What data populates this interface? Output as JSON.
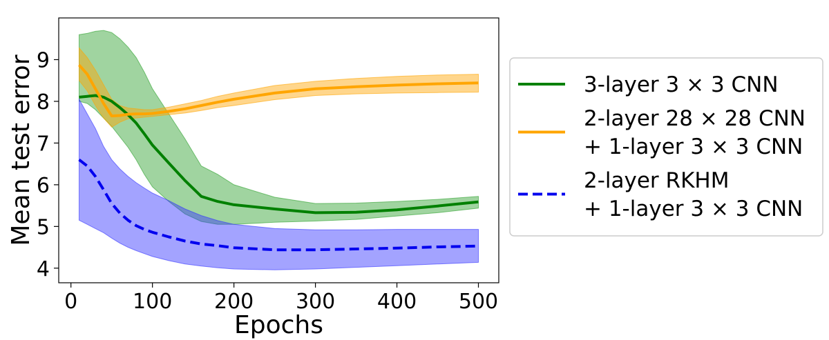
{
  "chart_data": {
    "type": "line",
    "title": "",
    "xlabel": "Epochs",
    "ylabel": "Mean test error",
    "xlim": [
      -15,
      525
    ],
    "ylim": [
      3.65,
      10.0
    ],
    "xticks": [
      0,
      100,
      200,
      300,
      400,
      500
    ],
    "yticks": [
      4,
      5,
      6,
      7,
      8,
      9
    ],
    "grid": false,
    "legend_position": "outside-right",
    "series": [
      {
        "name": "3-layer 3 × 3 CNN",
        "legend_lines": [
          "3-layer 3 × 3 CNN"
        ],
        "color": "#008000",
        "band_color": "#2ca02c",
        "line_style": "solid",
        "x": [
          10,
          20,
          30,
          40,
          50,
          60,
          70,
          80,
          90,
          100,
          120,
          140,
          160,
          180,
          200,
          250,
          300,
          350,
          400,
          450,
          500
        ],
        "y": [
          8.1,
          8.12,
          8.14,
          8.1,
          8.0,
          7.85,
          7.68,
          7.48,
          7.22,
          6.95,
          6.52,
          6.1,
          5.72,
          5.6,
          5.52,
          5.42,
          5.33,
          5.34,
          5.4,
          5.49,
          5.59
        ],
        "upper": [
          9.6,
          9.63,
          9.68,
          9.7,
          9.65,
          9.5,
          9.3,
          9.05,
          8.7,
          8.3,
          7.7,
          7.1,
          6.45,
          6.25,
          6.0,
          5.7,
          5.55,
          5.56,
          5.6,
          5.65,
          5.72
        ],
        "lower": [
          8.0,
          7.95,
          7.8,
          7.6,
          7.4,
          7.15,
          6.9,
          6.6,
          6.25,
          5.95,
          5.6,
          5.3,
          5.12,
          5.05,
          5.05,
          5.1,
          5.13,
          5.17,
          5.25,
          5.33,
          5.44
        ]
      },
      {
        "name": "2-layer 28 × 28 CNN + 1-layer 3 × 3 CNN",
        "legend_lines": [
          "2-layer 28 × 28 CNN",
          "+ 1-layer 3 × 3 CNN"
        ],
        "color": "#ffa500",
        "band_color": "#ffa500",
        "line_style": "solid",
        "x": [
          10,
          20,
          30,
          40,
          50,
          60,
          70,
          80,
          90,
          100,
          120,
          140,
          160,
          180,
          200,
          250,
          300,
          350,
          400,
          450,
          500
        ],
        "y": [
          8.87,
          8.65,
          8.3,
          7.95,
          7.65,
          7.66,
          7.69,
          7.7,
          7.7,
          7.71,
          7.76,
          7.82,
          7.9,
          7.98,
          8.05,
          8.2,
          8.3,
          8.35,
          8.39,
          8.42,
          8.44
        ],
        "upper": [
          9.28,
          9.05,
          8.75,
          8.4,
          8.05,
          7.9,
          7.84,
          7.82,
          7.8,
          7.8,
          7.86,
          7.94,
          8.02,
          8.12,
          8.2,
          8.38,
          8.48,
          8.55,
          8.6,
          8.63,
          8.65
        ],
        "lower": [
          8.5,
          8.25,
          7.9,
          7.6,
          7.38,
          7.5,
          7.58,
          7.6,
          7.62,
          7.64,
          7.68,
          7.72,
          7.78,
          7.85,
          7.9,
          8.04,
          8.14,
          8.18,
          8.2,
          8.21,
          8.22
        ]
      },
      {
        "name": "2-layer RKHM + 1-layer 3 × 3 CNN",
        "legend_lines": [
          "2-layer RKHM",
          "+ 1-layer 3 × 3 CNN"
        ],
        "color": "#0000ee",
        "band_color": "#3333ff",
        "line_style": "dashed",
        "x": [
          10,
          20,
          30,
          40,
          50,
          60,
          70,
          80,
          90,
          100,
          120,
          140,
          160,
          180,
          200,
          250,
          300,
          350,
          400,
          450,
          500
        ],
        "y": [
          6.6,
          6.45,
          6.2,
          5.88,
          5.55,
          5.32,
          5.15,
          5.02,
          4.93,
          4.86,
          4.75,
          4.65,
          4.58,
          4.54,
          4.49,
          4.44,
          4.44,
          4.46,
          4.48,
          4.51,
          4.53
        ],
        "upper": [
          8.05,
          7.7,
          7.35,
          6.92,
          6.6,
          6.38,
          6.2,
          6.05,
          5.92,
          5.8,
          5.62,
          5.42,
          5.26,
          5.14,
          5.05,
          4.95,
          4.92,
          4.92,
          4.93,
          4.93,
          4.93
        ],
        "lower": [
          5.15,
          5.05,
          4.95,
          4.85,
          4.72,
          4.6,
          4.5,
          4.42,
          4.35,
          4.28,
          4.18,
          4.1,
          4.05,
          4.01,
          3.98,
          3.96,
          3.98,
          4.02,
          4.06,
          4.1,
          4.14
        ]
      }
    ]
  }
}
